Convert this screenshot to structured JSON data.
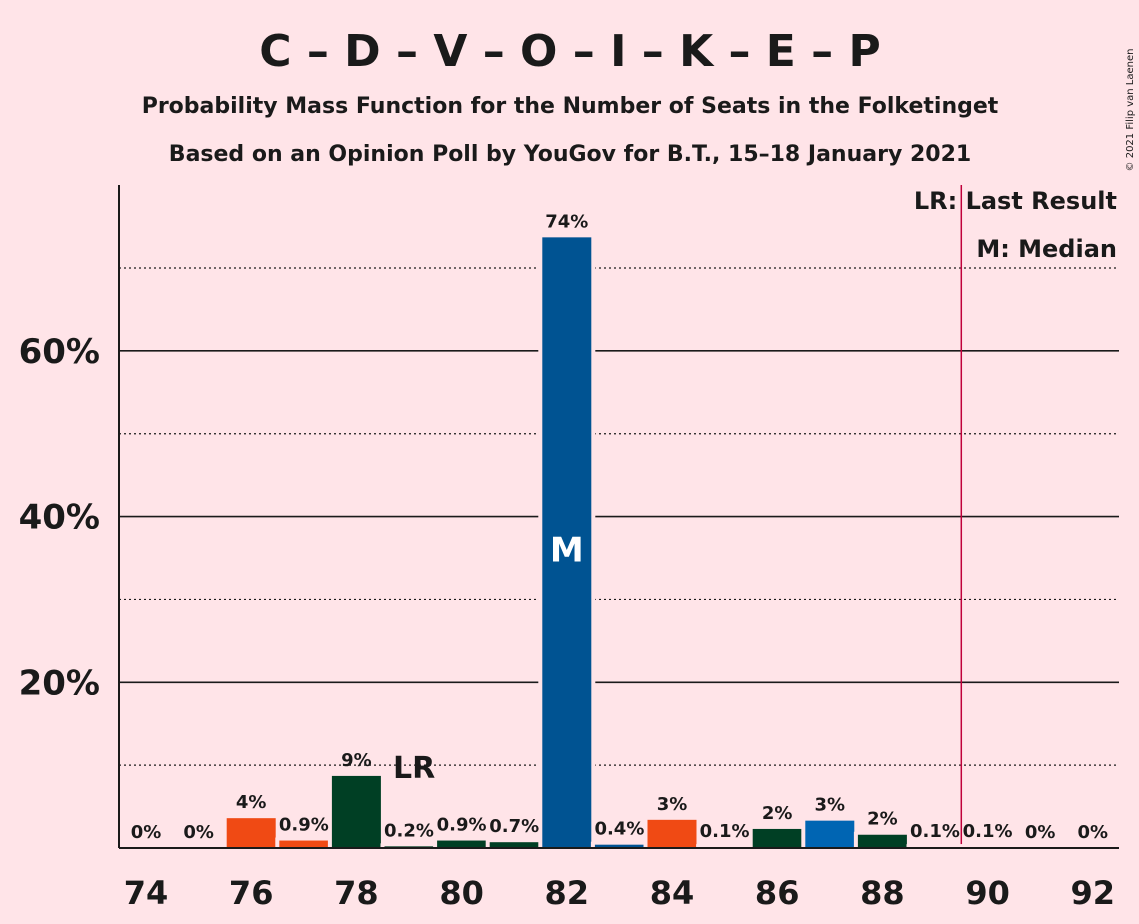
{
  "chart_data": {
    "type": "bar",
    "title": "C – D – V – O – I – K – E – P",
    "subtitle_1": "Probability Mass Function for the Number of Seats in the Folketinget",
    "subtitle_2": "Based on an Opinion Poll by YouGov for B.T., 15–18 January 2021",
    "copyright": "© 2021 Filip van Laenen",
    "x": [
      74,
      75,
      76,
      77,
      78,
      79,
      80,
      81,
      82,
      83,
      84,
      85,
      86,
      87,
      88,
      89,
      90,
      91,
      92
    ],
    "values": [
      0,
      0,
      3.6,
      0.9,
      8.7,
      0.2,
      0.9,
      0.7,
      73.7,
      0.4,
      3.4,
      0.1,
      2.3,
      3.3,
      1.6,
      0.1,
      0.1,
      0,
      0
    ],
    "value_labels": [
      "0%",
      "0%",
      "4%",
      "0.9%",
      "9%",
      "0.2%",
      "0.9%",
      "0.7%",
      "74%",
      "0.4%",
      "3%",
      "0.1%",
      "2%",
      "3%",
      "2%",
      "0.1%",
      "0.1%",
      "0%",
      "0%"
    ],
    "bar_colors": [
      "#E8321E",
      "#E8321E",
      "#F04A14",
      "#F04A14",
      "#003F24",
      "#003F24",
      "#003F24",
      "#003F24",
      "#005392",
      "#005392",
      "#F04A14",
      "#F04A14",
      "#003F24",
      "#0065B3",
      "#003F24",
      "#003F24",
      "#003F24",
      "#003F24",
      "#003F24"
    ],
    "x_tick_labels": [
      "74",
      "76",
      "78",
      "80",
      "82",
      "84",
      "86",
      "88",
      "90",
      "92"
    ],
    "x_tick_values": [
      74,
      76,
      78,
      80,
      82,
      84,
      86,
      88,
      90,
      92
    ],
    "y_tick_labels": [
      "20%",
      "40%",
      "60%"
    ],
    "y_tick_values": [
      20,
      40,
      60
    ],
    "y_minor_gridlines": [
      10,
      30,
      50,
      70
    ],
    "ylim": [
      0,
      80
    ],
    "last_result": {
      "label": "LR",
      "seats": 79,
      "line_position": 89.5
    },
    "median": {
      "label": "M",
      "seats": 82
    },
    "legend": {
      "lr_text": "LR: Last Result",
      "m_text": "M: Median",
      "placement": "top-right"
    },
    "colors": {
      "background": "#FFE4E8",
      "lr_line": "#C0003A",
      "axis": "#1a1a1a"
    }
  }
}
